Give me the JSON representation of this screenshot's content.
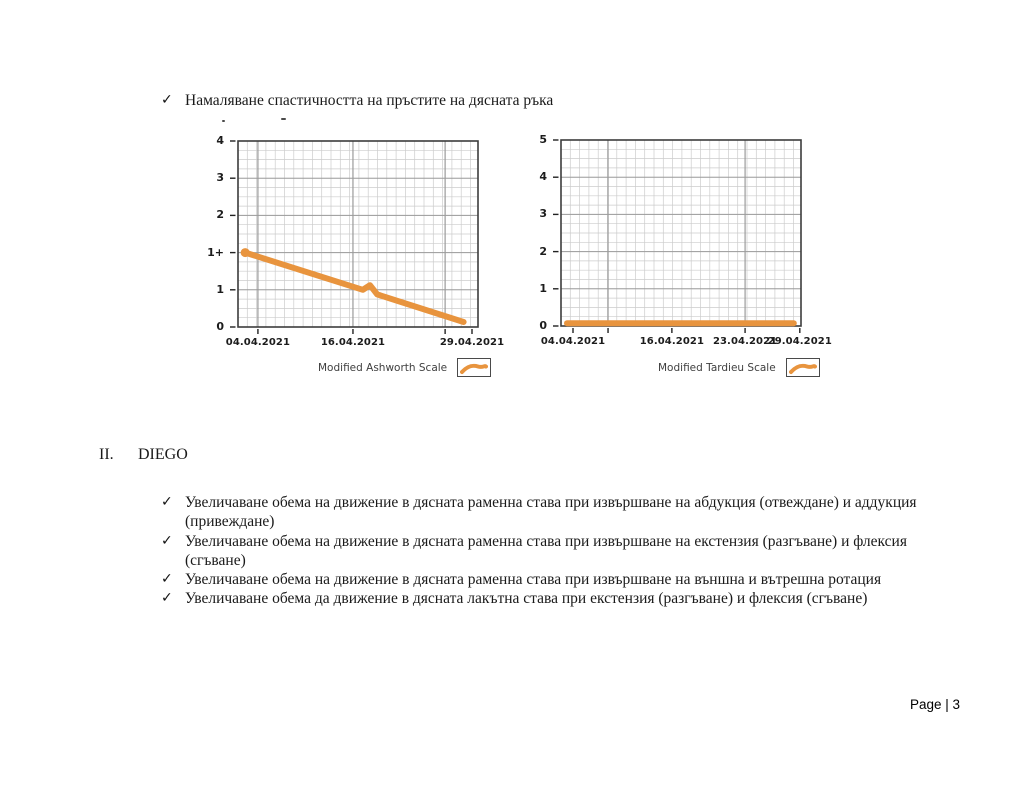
{
  "intro_bullet": "Намаляване спастичността на пръстите на дясната ръка",
  "check_glyph": "✓",
  "section": {
    "number": "II.",
    "title": "DIEGO"
  },
  "bullets": [
    "Увеличаване обема на движение в дясната раменна става при извършване на абдукция (отвеждане) и аддукция (привеждане)",
    "Увеличаване обема на движение в дясната раменна става при извършване на екстензия (разгъване) и флексия (сгъване)",
    "Увеличаване обема на движение в дясната раменна става при извършване на външна и вътрешна ротация",
    "Увеличаване обема да движение в дясната лакътна става при екстензия (разгъване) и флексия (сгъване)"
  ],
  "footer": "Page | 3",
  "chart_data": [
    {
      "type": "line",
      "legend": "Modified Ashworth Scale",
      "title": "",
      "series": [
        {
          "name": "Modified Ashworth Scale",
          "x": [
            "04.04.2021",
            "16.04.2021",
            "29.04.2021"
          ],
          "values": [
            "1+",
            "1",
            "0"
          ]
        }
      ],
      "y_ticks": [
        "4",
        "3",
        "2",
        "1+",
        "1",
        "0"
      ],
      "x_ticks": [
        {
          "label": "04.04.2021",
          "pos": 0.083
        },
        {
          "label": "16.04.2021",
          "pos": 0.479
        },
        {
          "label": "",
          "pos": 0.863
        },
        {
          "label": "29.04.2021",
          "pos": 0.975
        }
      ],
      "major_x": [
        0.083,
        0.479,
        0.863
      ],
      "line_points": [
        [
          0.03,
          0.6
        ],
        [
          0.52,
          0.8
        ],
        [
          0.55,
          0.775
        ],
        [
          0.58,
          0.825
        ],
        [
          0.94,
          0.973
        ]
      ],
      "start_dot": true,
      "line_color": "#E8943E",
      "grid": true,
      "legend_position": "bottom"
    },
    {
      "type": "line",
      "legend": "Modified Tardieu Scale",
      "title": "",
      "series": [
        {
          "name": "Modified Tardieu Scale",
          "x": [
            "04.04.2021",
            "16.04.2021",
            "23.04.2021",
            "29.04.2021"
          ],
          "values": [
            0,
            0,
            0,
            0
          ]
        }
      ],
      "y_ticks": [
        "5",
        "4",
        "3",
        "2",
        "1",
        "0"
      ],
      "x_ticks": [
        {
          "label": "04.04.2021",
          "pos": 0.05
        },
        {
          "label": "",
          "pos": 0.196
        },
        {
          "label": "16.04.2021",
          "pos": 0.462
        },
        {
          "label": "23.04.2021",
          "pos": 0.767
        },
        {
          "label": "29.04.2021",
          "pos": 0.995
        }
      ],
      "major_x": [
        0.196,
        0.767
      ],
      "line_points": [
        [
          0.025,
          0.985
        ],
        [
          0.97,
          0.985
        ]
      ],
      "start_dot": false,
      "line_color": "#E8943E",
      "grid": true,
      "legend_position": "bottom"
    }
  ]
}
